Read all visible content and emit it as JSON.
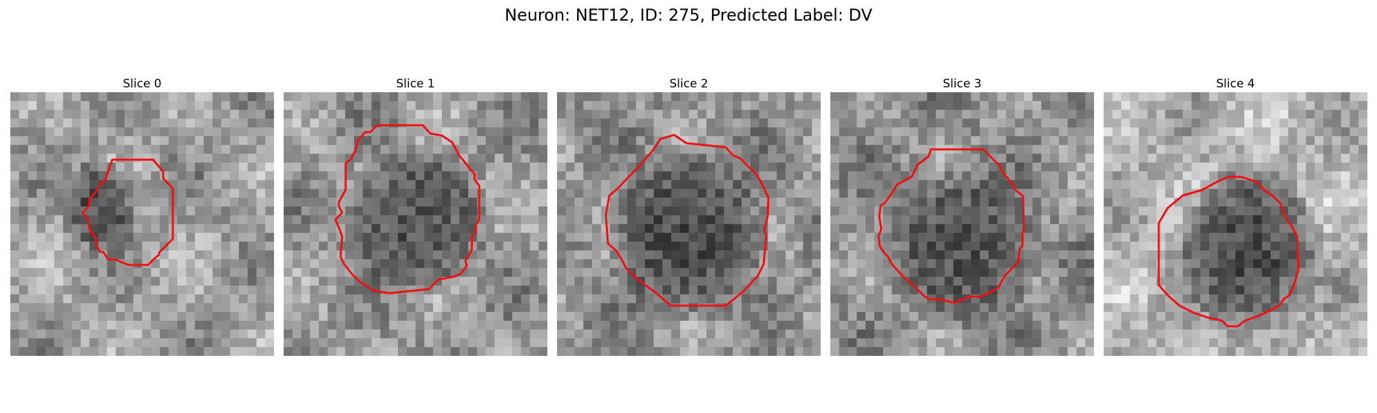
{
  "figure": {
    "title": "Neuron: NET12, ID: 275, Predicted Label: DV"
  },
  "contour_color": "#ee1111",
  "slices": [
    {
      "title": "Slice 0"
    },
    {
      "title": "Slice 1"
    },
    {
      "title": "Slice 2"
    },
    {
      "title": "Slice 3"
    },
    {
      "title": "Slice 4"
    }
  ]
}
